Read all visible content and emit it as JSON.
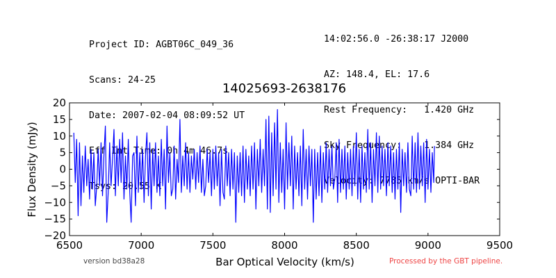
{
  "header": {
    "left_lines": [
      "Project ID: AGBT06C_049_36",
      "Scans: 24-25",
      "Date: 2007-02-04 08:09:52 UT",
      "Eff Int Time: 0h 4m 46.7s",
      "Tsys: 20.55 K"
    ],
    "right_lines": [
      "14:02:56.0 -26:38:17 J2000",
      "AZ: 148.4, EL: 17.6",
      "Rest Frequency:   1.420 GHz",
      "Sky Frequency:    1.384 GHz",
      "Velocity: 7785 km/s OPTI-BAR"
    ]
  },
  "footer": {
    "version": "version bd38a28",
    "pipeline": "Processed by the GBT pipeline.",
    "pipeline_color": "#ee4444"
  },
  "chart_data": {
    "type": "line",
    "title": "14025693-2638176",
    "xlabel": "Bar Optical Velocity (km/s)",
    "ylabel": "Flux Density (mJy)",
    "xlim": [
      6500,
      9500
    ],
    "ylim": [
      -20,
      20
    ],
    "x_ticks": [
      "6500",
      "7000",
      "7500",
      "8000",
      "8500",
      "9000",
      "9500"
    ],
    "y_ticks": [
      "20",
      "15",
      "10",
      "5",
      "0",
      "−5",
      "−10",
      "−15",
      "−20"
    ],
    "grid": false,
    "series_color": "#0000ff",
    "series": [
      {
        "x_start": 6530,
        "x_end": 9045,
        "points": [
          [
            6530,
            11
          ],
          [
            6540,
            -4
          ],
          [
            6550,
            9
          ],
          [
            6560,
            -14
          ],
          [
            6570,
            8
          ],
          [
            6580,
            -11
          ],
          [
            6590,
            4
          ],
          [
            6600,
            -7
          ],
          [
            6610,
            7
          ],
          [
            6620,
            -5
          ],
          [
            6630,
            3
          ],
          [
            6640,
            -9
          ],
          [
            6650,
            6
          ],
          [
            6660,
            -6
          ],
          [
            6670,
            5
          ],
          [
            6680,
            -11
          ],
          [
            6690,
            -5
          ],
          [
            6700,
            6
          ],
          [
            6710,
            -5
          ],
          [
            6720,
            8
          ],
          [
            6730,
            -8
          ],
          [
            6740,
            4
          ],
          [
            6750,
            13
          ],
          [
            6760,
            -16
          ],
          [
            6770,
            -7
          ],
          [
            6780,
            8
          ],
          [
            6790,
            -5
          ],
          [
            6800,
            3
          ],
          [
            6810,
            12
          ],
          [
            6820,
            -8
          ],
          [
            6830,
            7
          ],
          [
            6840,
            -5
          ],
          [
            6850,
            9
          ],
          [
            6860,
            -4
          ],
          [
            6870,
            11
          ],
          [
            6880,
            -9
          ],
          [
            6890,
            4
          ],
          [
            6900,
            -6
          ],
          [
            6910,
            9
          ],
          [
            6920,
            -7
          ],
          [
            6930,
            -16
          ],
          [
            6940,
            4
          ],
          [
            6950,
            5
          ],
          [
            6960,
            -11
          ],
          [
            6970,
            10
          ],
          [
            6980,
            -7
          ],
          [
            6990,
            5
          ],
          [
            7000,
            -6
          ],
          [
            7010,
            6
          ],
          [
            7020,
            -10
          ],
          [
            7030,
            4
          ],
          [
            7040,
            11
          ],
          [
            7050,
            -8
          ],
          [
            7060,
            8
          ],
          [
            7070,
            -12
          ],
          [
            7080,
            6
          ],
          [
            7090,
            -5
          ],
          [
            7100,
            8
          ],
          [
            7110,
            -7
          ],
          [
            7120,
            4
          ],
          [
            7130,
            -8
          ],
          [
            7140,
            9
          ],
          [
            7150,
            -5
          ],
          [
            7160,
            6
          ],
          [
            7170,
            -12
          ],
          [
            7180,
            13
          ],
          [
            7190,
            -4
          ],
          [
            7200,
            5
          ],
          [
            7210,
            -8
          ],
          [
            7220,
            -6
          ],
          [
            7230,
            7
          ],
          [
            7240,
            -9
          ],
          [
            7250,
            3
          ],
          [
            7260,
            -4
          ],
          [
            7270,
            15
          ],
          [
            7280,
            -7
          ],
          [
            7290,
            4
          ],
          [
            7300,
            -5
          ],
          [
            7310,
            8
          ],
          [
            7320,
            -6
          ],
          [
            7330,
            5
          ],
          [
            7340,
            -7
          ],
          [
            7350,
            4
          ],
          [
            7360,
            -3
          ],
          [
            7370,
            6
          ],
          [
            7380,
            -6
          ],
          [
            7390,
            5
          ],
          [
            7400,
            -4
          ],
          [
            7410,
            7
          ],
          [
            7420,
            -7
          ],
          [
            7430,
            3
          ],
          [
            7440,
            -8
          ],
          [
            7450,
            -5
          ],
          [
            7460,
            6
          ],
          [
            7470,
            -4
          ],
          [
            7480,
            5
          ],
          [
            7490,
            -8
          ],
          [
            7500,
            6
          ],
          [
            7510,
            -6
          ],
          [
            7520,
            7
          ],
          [
            7530,
            -5
          ],
          [
            7540,
            5
          ],
          [
            7550,
            -11
          ],
          [
            7560,
            6
          ],
          [
            7570,
            -7
          ],
          [
            7580,
            -9
          ],
          [
            7590,
            7
          ],
          [
            7600,
            -5
          ],
          [
            7610,
            5
          ],
          [
            7620,
            -8
          ],
          [
            7630,
            6
          ],
          [
            7640,
            -6
          ],
          [
            7650,
            5
          ],
          [
            7660,
            -16
          ],
          [
            7670,
            4
          ],
          [
            7680,
            -7
          ],
          [
            7690,
            5
          ],
          [
            7700,
            -8
          ],
          [
            7710,
            7
          ],
          [
            7720,
            -10
          ],
          [
            7730,
            6
          ],
          [
            7740,
            -6
          ],
          [
            7750,
            4
          ],
          [
            7760,
            -8
          ],
          [
            7770,
            7
          ],
          [
            7780,
            -6
          ],
          [
            7790,
            8
          ],
          [
            7800,
            -12
          ],
          [
            7810,
            6
          ],
          [
            7820,
            -5
          ],
          [
            7830,
            9
          ],
          [
            7840,
            -7
          ],
          [
            7850,
            6
          ],
          [
            7860,
            -5
          ],
          [
            7870,
            15
          ],
          [
            7880,
            -12
          ],
          [
            7890,
            16
          ],
          [
            7900,
            -13
          ],
          [
            7910,
            11
          ],
          [
            7920,
            -8
          ],
          [
            7930,
            14
          ],
          [
            7940,
            -6
          ],
          [
            7950,
            18
          ],
          [
            7960,
            -10
          ],
          [
            7970,
            8
          ],
          [
            7980,
            -7
          ],
          [
            7990,
            6
          ],
          [
            8000,
            -12
          ],
          [
            8010,
            14
          ],
          [
            8020,
            -6
          ],
          [
            8030,
            8
          ],
          [
            8040,
            -5
          ],
          [
            8050,
            10
          ],
          [
            8060,
            -12
          ],
          [
            8070,
            7
          ],
          [
            8080,
            -6
          ],
          [
            8090,
            5
          ],
          [
            8100,
            -8
          ],
          [
            8110,
            7
          ],
          [
            8120,
            -11
          ],
          [
            8130,
            12
          ],
          [
            8140,
            -6
          ],
          [
            8150,
            6
          ],
          [
            8160,
            -9
          ],
          [
            8170,
            7
          ],
          [
            8180,
            -5
          ],
          [
            8190,
            6
          ],
          [
            8200,
            -16
          ],
          [
            8210,
            6
          ],
          [
            8220,
            -9
          ],
          [
            8230,
            5
          ],
          [
            8240,
            -8
          ],
          [
            8250,
            7
          ],
          [
            8260,
            -10
          ],
          [
            8270,
            5
          ],
          [
            8280,
            -6
          ],
          [
            8290,
            8
          ],
          [
            8300,
            -7
          ],
          [
            8310,
            6
          ],
          [
            8320,
            -5
          ],
          [
            8330,
            7
          ],
          [
            8340,
            -6
          ],
          [
            8350,
            -3
          ],
          [
            8360,
            8
          ],
          [
            8370,
            -10
          ],
          [
            8380,
            9
          ],
          [
            8390,
            -7
          ],
          [
            8400,
            6
          ],
          [
            8410,
            -6
          ],
          [
            8420,
            7
          ],
          [
            8430,
            -9
          ],
          [
            8440,
            5
          ],
          [
            8450,
            -6
          ],
          [
            8460,
            6
          ],
          [
            8470,
            -8
          ],
          [
            8480,
            7
          ],
          [
            8490,
            -5
          ],
          [
            8500,
            11
          ],
          [
            8510,
            -9
          ],
          [
            8520,
            6
          ],
          [
            8530,
            -10
          ],
          [
            8540,
            7
          ],
          [
            8550,
            -6
          ],
          [
            8560,
            5
          ],
          [
            8570,
            -7
          ],
          [
            8580,
            12
          ],
          [
            8590,
            -6
          ],
          [
            8600,
            8
          ],
          [
            8610,
            -10
          ],
          [
            8620,
            6
          ],
          [
            8630,
            -5
          ],
          [
            8640,
            11
          ],
          [
            8650,
            -7
          ],
          [
            8660,
            10
          ],
          [
            8670,
            -6
          ],
          [
            8680,
            7
          ],
          [
            8690,
            -5
          ],
          [
            8700,
            6
          ],
          [
            8710,
            -8
          ],
          [
            8720,
            8
          ],
          [
            8730,
            -5
          ],
          [
            8740,
            7
          ],
          [
            8750,
            -7
          ],
          [
            8760,
            5
          ],
          [
            8770,
            -9
          ],
          [
            8780,
            6
          ],
          [
            8790,
            -6
          ],
          [
            8800,
            8
          ],
          [
            8810,
            -13
          ],
          [
            8820,
            6
          ],
          [
            8830,
            -5
          ],
          [
            8840,
            5
          ],
          [
            8850,
            -7
          ],
          [
            8860,
            8
          ],
          [
            8870,
            -6
          ],
          [
            8880,
            -8
          ],
          [
            8890,
            10
          ],
          [
            8900,
            -6
          ],
          [
            8910,
            8
          ],
          [
            8920,
            -7
          ],
          [
            8930,
            11
          ],
          [
            8940,
            -6
          ],
          [
            8950,
            7
          ],
          [
            8960,
            -5
          ],
          [
            8970,
            8
          ],
          [
            8980,
            -10
          ],
          [
            8990,
            9
          ],
          [
            9000,
            -6
          ],
          [
            9010,
            6
          ],
          [
            9020,
            -7
          ],
          [
            9030,
            5
          ],
          [
            9040,
            -4
          ],
          [
            9045,
            7
          ]
        ]
      }
    ]
  }
}
